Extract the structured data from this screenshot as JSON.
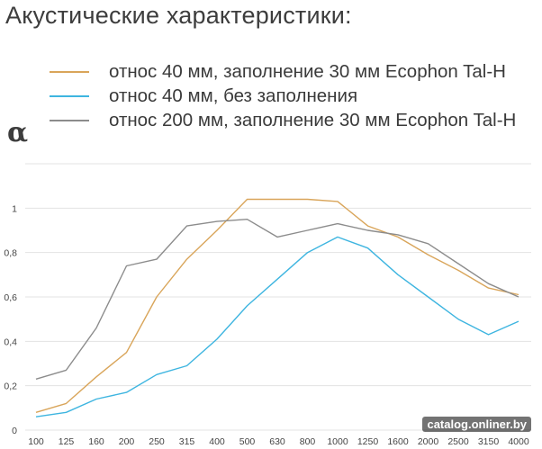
{
  "title": "Акустические характеристики:",
  "watermark": "catalog.onliner.by",
  "legend": [
    {
      "label": "относ 40 мм, заполнение 30 мм Ecophon Tal-H",
      "color": "#d9a55a"
    },
    {
      "label": "относ 40 мм, без заполнения",
      "color": "#3eb5e0"
    },
    {
      "label": "относ 200 мм, заполнение 30 мм Ecophon Tal-H",
      "color": "#8c8c8c"
    }
  ],
  "chart_data": {
    "type": "line",
    "ylabel": "α",
    "xlabel": "",
    "categories": [
      "100",
      "125",
      "160",
      "200",
      "250",
      "315",
      "400",
      "500",
      "630",
      "800",
      "1000",
      "1250",
      "1600",
      "2000",
      "2500",
      "3150",
      "4000"
    ],
    "ylim": [
      0,
      1.2
    ],
    "yticks": [
      0,
      0.2,
      0.4,
      0.6,
      0.8,
      1
    ],
    "ytick_labels": [
      "0",
      "0,2",
      "0,4",
      "0,6",
      "0,8",
      "1"
    ],
    "grid": true,
    "series": [
      {
        "name": "относ 40 мм, заполнение 30 мм Ecophon Tal-H",
        "color": "#d9a55a",
        "values": [
          0.08,
          0.12,
          0.24,
          0.35,
          0.6,
          0.77,
          0.9,
          1.04,
          1.04,
          1.04,
          1.03,
          0.92,
          0.87,
          0.79,
          0.72,
          0.64,
          0.61
        ]
      },
      {
        "name": "относ 40 мм, без заполнения",
        "color": "#3eb5e0",
        "values": [
          0.06,
          0.08,
          0.14,
          0.17,
          0.25,
          0.29,
          0.41,
          0.56,
          0.68,
          0.8,
          0.87,
          0.82,
          0.7,
          0.6,
          0.5,
          0.43,
          0.49
        ]
      },
      {
        "name": "относ 200 мм, заполнение 30 мм Ecophon Tal-H",
        "color": "#8c8c8c",
        "values": [
          0.23,
          0.27,
          0.46,
          0.74,
          0.77,
          0.92,
          0.94,
          0.95,
          0.87,
          0.9,
          0.93,
          0.9,
          0.88,
          0.84,
          0.75,
          0.66,
          0.6
        ]
      }
    ]
  }
}
